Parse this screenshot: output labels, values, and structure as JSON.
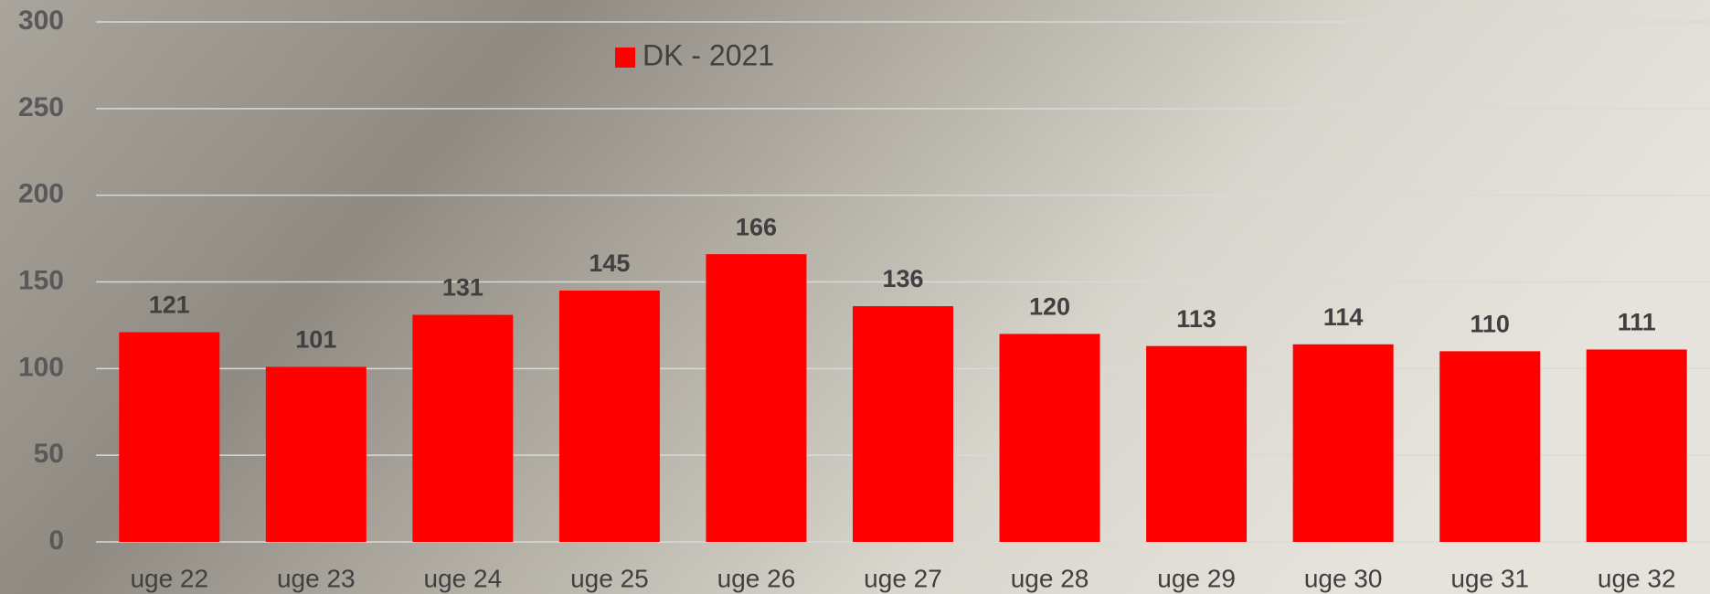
{
  "chart_data": {
    "type": "bar",
    "categories": [
      "uge 22",
      "uge 23",
      "uge 24",
      "uge 25",
      "uge 26",
      "uge 27",
      "uge 28",
      "uge 29",
      "uge 30",
      "uge 31",
      "uge 32"
    ],
    "series": [
      {
        "name": "DK - 2021",
        "color": "#ff0000",
        "values": [
          121,
          101,
          131,
          145,
          166,
          136,
          120,
          113,
          114,
          110,
          111
        ]
      }
    ],
    "ylim": [
      0,
      300
    ],
    "yticks": [
      0,
      50,
      100,
      150,
      200,
      250,
      300
    ],
    "grid": true,
    "legend": "top"
  }
}
